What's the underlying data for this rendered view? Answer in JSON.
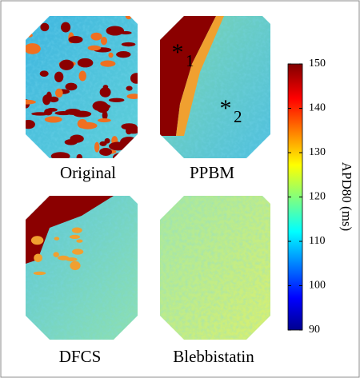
{
  "panels": [
    {
      "label": "Original"
    },
    {
      "label": "PPBM"
    },
    {
      "label": "DFCS"
    },
    {
      "label": "Blebbistatin"
    }
  ],
  "annotations": [
    {
      "mark": "*",
      "label": "1"
    },
    {
      "mark": "*",
      "label": "2"
    }
  ],
  "colorbar": {
    "label": "APD80 (ms)",
    "lim": [
      90,
      150
    ],
    "ticks": [
      90,
      100,
      110,
      120,
      130,
      140,
      150
    ]
  }
}
